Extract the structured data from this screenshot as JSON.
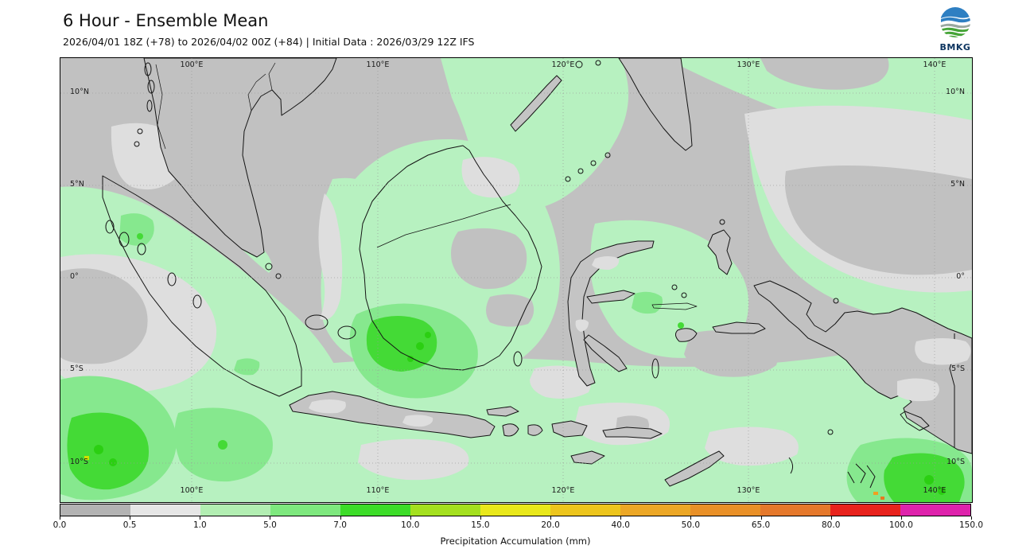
{
  "header": {
    "title": "6 Hour - Ensemble Mean",
    "subtitle": "2026/04/01 18Z (+78) to 2026/04/02 00Z (+84) | Initial Data : 2026/03/29 12Z IFS",
    "logo_text": "BMKG"
  },
  "map": {
    "lon_labels": [
      "100°E",
      "110°E",
      "120°E",
      "130°E",
      "140°E"
    ],
    "lat_labels": [
      "10°N",
      "5°N",
      "0°",
      "5°S",
      "10°S"
    ],
    "palette": {
      "no_rain_gray": "#c1c1c1",
      "trace_light_gray": "#dedede",
      "light_rain_pale_green": "#b7f1c0",
      "moderate_green": "#86e88e",
      "heavy_bright_green": "#44da36"
    }
  },
  "colorbar": {
    "title": "Precipitation Accumulation (mm)",
    "ticks": [
      "0.0",
      "0.5",
      "1.0",
      "5.0",
      "7.0",
      "10.0",
      "15.0",
      "20.0",
      "40.0",
      "50.0",
      "65.0",
      "80.0",
      "100.0",
      "150.0"
    ],
    "colors": [
      "#b3b3b3",
      "#e6e6e6",
      "#b2eeb2",
      "#7ee87e",
      "#3cdc28",
      "#a4e01f",
      "#e9e81b",
      "#edc51c",
      "#eca726",
      "#e99027",
      "#e5782b",
      "#e8231d",
      "#de23ac"
    ]
  }
}
